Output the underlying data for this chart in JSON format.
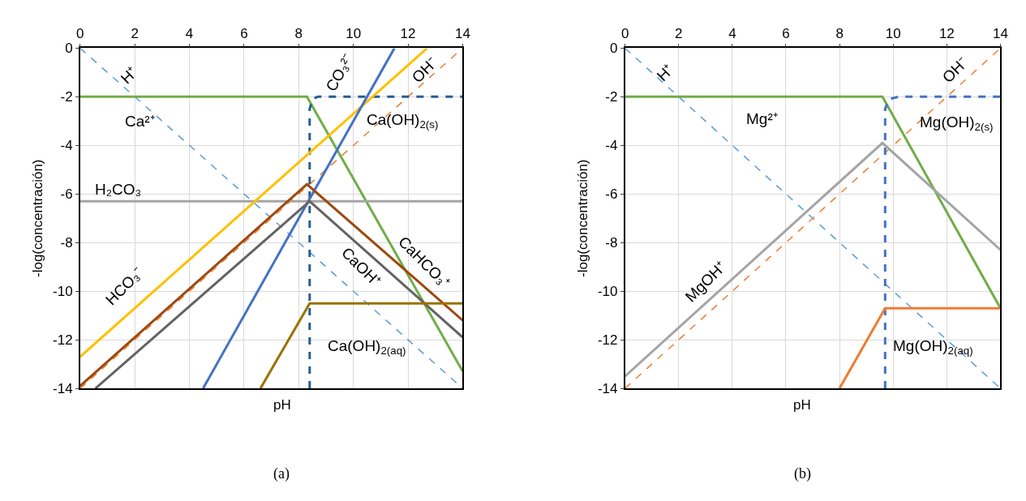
{
  "chart_data": [
    {
      "type": "line",
      "xlabel": "pH",
      "ylabel": "-log(concentración)",
      "xlim": [
        0,
        14
      ],
      "ylim": [
        -14,
        0
      ],
      "xticks": [
        0,
        2,
        4,
        6,
        8,
        10,
        12,
        14
      ],
      "yticks": [
        0,
        -2,
        -4,
        -6,
        -8,
        -10,
        -12,
        -14
      ],
      "grid": true,
      "marker": "none",
      "series": [
        {
          "color": "#5b9bd5",
          "line_style": "dashed",
          "x": [
            0,
            14
          ],
          "values": [
            0,
            -14
          ]
        },
        {
          "color": "#ed7d31",
          "line_style": "dashed",
          "x": [
            0,
            14
          ],
          "values": [
            -14,
            0
          ]
        },
        {
          "color": "#70ad47",
          "line_style": "solid",
          "x": [
            0,
            8.3,
            14
          ],
          "values": [
            -2,
            -2,
            -13.3
          ]
        },
        {
          "color": "#255e91",
          "line_style": "dashed",
          "x": [
            8.4,
            8.4,
            8.5,
            8.7,
            14
          ],
          "values": [
            -14,
            -2.5,
            -2.1,
            -2,
            -2
          ]
        },
        {
          "color": "#a5a5a5",
          "line_style": "solid",
          "x": [
            0,
            14
          ],
          "values": [
            -6.3,
            -6.3
          ]
        },
        {
          "color": "#ffc000",
          "line_style": "solid",
          "x": [
            0,
            12.7
          ],
          "values": [
            -12.7,
            0
          ]
        },
        {
          "color": "#4472c4",
          "line_style": "solid",
          "x": [
            4.5,
            11.5
          ],
          "values": [
            -14,
            0
          ]
        },
        {
          "color": "#9e480e",
          "line_style": "solid",
          "x": [
            0,
            8.3,
            14
          ],
          "values": [
            -13.9,
            -5.6,
            -11.2
          ]
        },
        {
          "color": "#636363",
          "line_style": "solid",
          "x": [
            0.56,
            8.4,
            14
          ],
          "values": [
            -14,
            -6.3,
            -11.9
          ]
        },
        {
          "color": "#997300",
          "line_style": "solid",
          "x": [
            6.6,
            8.4,
            14
          ],
          "values": [
            -14,
            -10.5,
            -10.5
          ]
        }
      ],
      "annotations": [
        "H⁺",
        "Ca²⁺",
        "CO₃²⁻",
        "OH⁻",
        "Ca(OH)$_{2(s)}$",
        "H₂CO₃",
        "HCO₃⁻",
        "CaOH⁺",
        "CaHCO₃⁺",
        "Ca(OH)$_{2(aq)}$",
        "(a)"
      ]
    },
    {
      "type": "line",
      "xlabel": "pH",
      "ylabel": "-log(concentración)",
      "xlim": [
        0,
        14
      ],
      "ylim": [
        -14,
        0
      ],
      "xticks": [
        0,
        2,
        4,
        6,
        8,
        10,
        12,
        14
      ],
      "yticks": [
        0,
        -2,
        -4,
        -6,
        -8,
        -10,
        -12,
        -14
      ],
      "grid": true,
      "marker": "none",
      "series": [
        {
          "color": "#5b9bd5",
          "line_style": "dashed",
          "x": [
            0,
            14
          ],
          "values": [
            0,
            -14
          ]
        },
        {
          "color": "#ed7d31",
          "line_style": "dashed",
          "x": [
            0,
            14
          ],
          "values": [
            -14,
            0
          ]
        },
        {
          "color": "#70ad47",
          "line_style": "solid",
          "x": [
            0,
            9.6,
            14
          ],
          "values": [
            -2,
            -2,
            -10.7
          ]
        },
        {
          "color": "#4472c4",
          "line_style": "dashed",
          "x": [
            9.7,
            9.7,
            9.85,
            10.2,
            14
          ],
          "values": [
            -14,
            -2.5,
            -2.1,
            -2,
            -2
          ]
        },
        {
          "color": "#a5a5a5",
          "line_style": "solid",
          "x": [
            0,
            9.6,
            14
          ],
          "values": [
            -13.5,
            -3.9,
            -8.3
          ]
        },
        {
          "color": "#ed7d31",
          "line_style": "solid",
          "x": [
            8.0,
            9.7,
            14
          ],
          "values": [
            -14,
            -10.7,
            -10.7
          ]
        }
      ],
      "annotations": [
        "H⁺",
        "OH⁻",
        "Mg²⁺",
        "Mg(OH)$_{2(s)}$",
        "MgOH⁺",
        "Mg(OH)$_{2(aq)}$",
        "(b)"
      ]
    }
  ]
}
